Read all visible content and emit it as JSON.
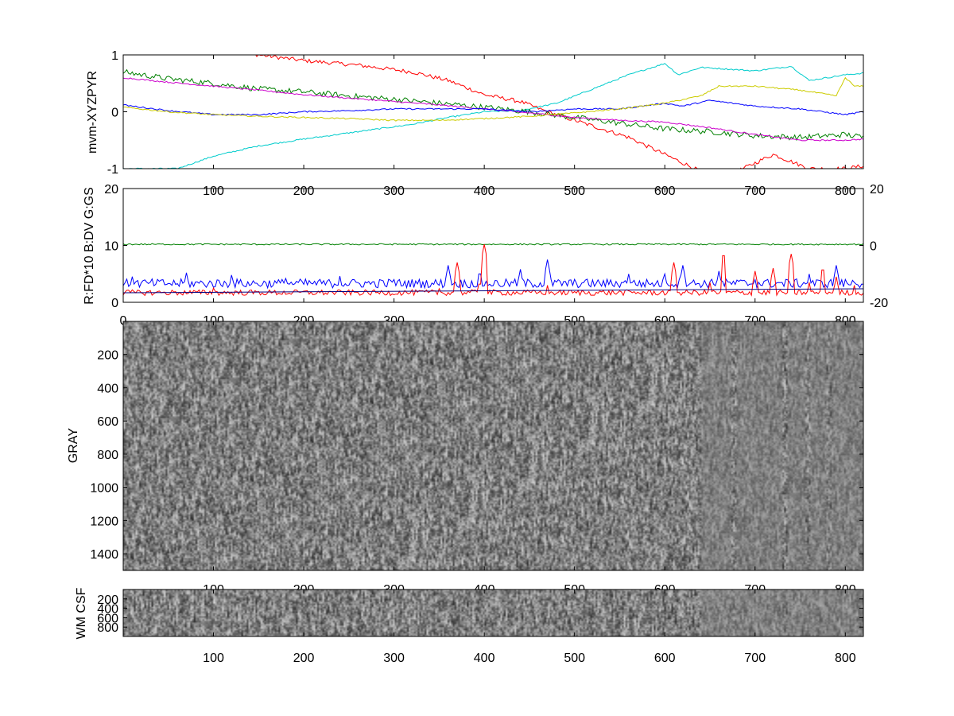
{
  "chart_data": [
    {
      "type": "line",
      "ylabel": "mvm-XYZPYR",
      "xlim": [
        0,
        820
      ],
      "ylim": [
        -1,
        1
      ],
      "x_ticks": [
        100,
        200,
        300,
        400,
        500,
        600,
        700,
        800
      ],
      "y_ticks": [
        -1,
        0,
        1
      ],
      "series": [
        {
          "color": "#ff0000",
          "points": [
            [
              80,
              1.15
            ],
            [
              150,
              1.0
            ],
            [
              200,
              0.9
            ],
            [
              260,
              0.82
            ],
            [
              320,
              0.7
            ],
            [
              360,
              0.55
            ],
            [
              400,
              0.3
            ],
            [
              440,
              0.18
            ],
            [
              470,
              0.0
            ],
            [
              510,
              -0.2
            ],
            [
              560,
              -0.45
            ],
            [
              600,
              -0.75
            ],
            [
              640,
              -1.05
            ],
            [
              680,
              -1.05
            ],
            [
              720,
              -0.75
            ],
            [
              760,
              -1.0
            ],
            [
              800,
              -1.0
            ],
            [
              820,
              -0.95
            ]
          ]
        },
        {
          "color": "#00cccc",
          "points": [
            [
              60,
              -1.0
            ],
            [
              100,
              -0.78
            ],
            [
              150,
              -0.6
            ],
            [
              200,
              -0.48
            ],
            [
              260,
              -0.35
            ],
            [
              320,
              -0.22
            ],
            [
              360,
              -0.1
            ],
            [
              400,
              0.0
            ],
            [
              440,
              0.02
            ],
            [
              480,
              0.15
            ],
            [
              520,
              0.4
            ],
            [
              560,
              0.65
            ],
            [
              600,
              0.85
            ],
            [
              615,
              0.65
            ],
            [
              640,
              0.78
            ],
            [
              700,
              0.72
            ],
            [
              740,
              0.8
            ],
            [
              760,
              0.55
            ],
            [
              800,
              0.65
            ],
            [
              820,
              0.68
            ]
          ]
        },
        {
          "color": "#008000",
          "points": [
            [
              0,
              0.7
            ],
            [
              50,
              0.58
            ],
            [
              100,
              0.5
            ],
            [
              150,
              0.4
            ],
            [
              200,
              0.35
            ],
            [
              250,
              0.28
            ],
            [
              300,
              0.22
            ],
            [
              350,
              0.15
            ],
            [
              400,
              0.08
            ],
            [
              450,
              0.0
            ],
            [
              500,
              -0.1
            ],
            [
              550,
              -0.2
            ],
            [
              600,
              -0.3
            ],
            [
              650,
              -0.35
            ],
            [
              700,
              -0.42
            ],
            [
              750,
              -0.45
            ],
            [
              800,
              -0.4
            ],
            [
              820,
              -0.45
            ]
          ]
        },
        {
          "color": "#cc00cc",
          "points": [
            [
              0,
              0.6
            ],
            [
              50,
              0.52
            ],
            [
              100,
              0.45
            ],
            [
              150,
              0.38
            ],
            [
              200,
              0.3
            ],
            [
              250,
              0.24
            ],
            [
              300,
              0.18
            ],
            [
              350,
              0.12
            ],
            [
              400,
              0.05
            ],
            [
              450,
              -0.02
            ],
            [
              500,
              -0.1
            ],
            [
              550,
              -0.15
            ],
            [
              600,
              -0.18
            ],
            [
              650,
              -0.28
            ],
            [
              700,
              -0.4
            ],
            [
              750,
              -0.5
            ],
            [
              800,
              -0.5
            ],
            [
              820,
              -0.48
            ]
          ]
        },
        {
          "color": "#0000ff",
          "points": [
            [
              0,
              0.12
            ],
            [
              50,
              0.02
            ],
            [
              100,
              -0.05
            ],
            [
              150,
              -0.05
            ],
            [
              200,
              0.0
            ],
            [
              250,
              0.02
            ],
            [
              300,
              0.05
            ],
            [
              350,
              0.05
            ],
            [
              400,
              0.05
            ],
            [
              450,
              0.0
            ],
            [
              500,
              0.05
            ],
            [
              550,
              0.05
            ],
            [
              600,
              0.15
            ],
            [
              620,
              0.1
            ],
            [
              650,
              0.2
            ],
            [
              700,
              0.1
            ],
            [
              750,
              0.05
            ],
            [
              800,
              -0.05
            ],
            [
              820,
              0.0
            ]
          ]
        },
        {
          "color": "#cccc00",
          "points": [
            [
              0,
              0.08
            ],
            [
              50,
              0.0
            ],
            [
              100,
              -0.05
            ],
            [
              150,
              -0.08
            ],
            [
              200,
              -0.1
            ],
            [
              250,
              -0.12
            ],
            [
              300,
              -0.15
            ],
            [
              350,
              -0.15
            ],
            [
              400,
              -0.12
            ],
            [
              450,
              -0.08
            ],
            [
              500,
              -0.02
            ],
            [
              550,
              0.05
            ],
            [
              600,
              0.15
            ],
            [
              640,
              0.28
            ],
            [
              660,
              0.45
            ],
            [
              700,
              0.45
            ],
            [
              750,
              0.38
            ],
            [
              790,
              0.28
            ],
            [
              800,
              0.6
            ],
            [
              810,
              0.45
            ],
            [
              820,
              0.45
            ]
          ]
        }
      ]
    },
    {
      "type": "line",
      "ylabel": "R:FD*10 B:DV G:GS",
      "xlim": [
        0,
        820
      ],
      "ylim": [
        0,
        20
      ],
      "y2lim": [
        -20,
        20
      ],
      "x_ticks": [
        0,
        100,
        200,
        300,
        400,
        500,
        600,
        700,
        800
      ],
      "y_ticks": [
        0,
        10,
        20
      ],
      "y2_ticks": [
        -20,
        0,
        20
      ],
      "series": [
        {
          "color": "#008000",
          "axis": "left",
          "points": [
            [
              0,
              10.2
            ],
            [
              820,
              10.1
            ]
          ]
        },
        {
          "color": "#0000ff",
          "axis": "left",
          "base": 3,
          "spikes": [
            [
              10,
              4.5
            ],
            [
              70,
              5.2
            ],
            [
              120,
              4.8
            ],
            [
              180,
              4.2
            ],
            [
              240,
              4.6
            ],
            [
              300,
              4.0
            ],
            [
              360,
              6.5
            ],
            [
              395,
              5.8
            ],
            [
              440,
              5.8
            ],
            [
              470,
              7.5
            ],
            [
              560,
              5.0
            ],
            [
              600,
              5.0
            ],
            [
              620,
              6.5
            ],
            [
              660,
              5.5
            ],
            [
              700,
              4.0
            ],
            [
              760,
              5.0
            ],
            [
              790,
              6.5
            ],
            [
              810,
              3.5
            ]
          ]
        },
        {
          "color": "#ff0000",
          "axis": "left",
          "base": 1.5,
          "spikes": [
            [
              100,
              2.5
            ],
            [
              250,
              2.0
            ],
            [
              350,
              2.4
            ],
            [
              370,
              7.0
            ],
            [
              395,
              4.0
            ],
            [
              400,
              10.2
            ],
            [
              470,
              3.0
            ],
            [
              610,
              7.0
            ],
            [
              650,
              3.5
            ],
            [
              665,
              9.0
            ],
            [
              700,
              5.5
            ],
            [
              720,
              6.0
            ],
            [
              740,
              8.5
            ],
            [
              760,
              3.5
            ],
            [
              775,
              6.5
            ],
            [
              790,
              4.5
            ],
            [
              810,
              3.0
            ]
          ]
        }
      ]
    },
    {
      "type": "heatmap",
      "ylabel": "GRAY",
      "xlim": [
        0,
        820
      ],
      "ylim": [
        0,
        1500
      ],
      "x_ticks": [
        100,
        200,
        300,
        400,
        500,
        600,
        700,
        800
      ],
      "y_ticks": [
        200,
        400,
        600,
        800,
        1000,
        1200,
        1400
      ],
      "colormap": "gray"
    },
    {
      "type": "heatmap",
      "ylabel": "WM CSF",
      "xlim": [
        0,
        820
      ],
      "ylim": [
        0,
        1000
      ],
      "x_ticks": [
        100,
        200,
        300,
        400,
        500,
        600,
        700,
        800
      ],
      "y_ticks": [
        200,
        400,
        600,
        800
      ],
      "colormap": "gray"
    }
  ]
}
